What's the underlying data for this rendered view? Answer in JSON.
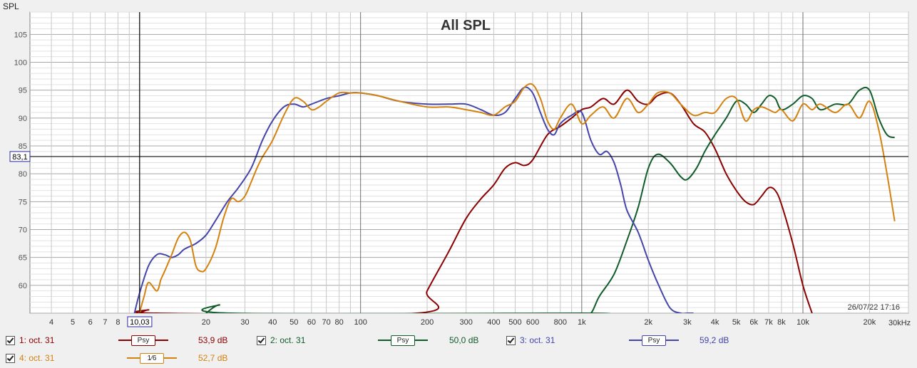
{
  "chart_data": {
    "type": "line",
    "title": "All SPL",
    "ylabel": "SPL",
    "xunit": "30kHz",
    "xscale": "log",
    "xlim": [
      3.2,
      30000
    ],
    "ylim": [
      55,
      109
    ],
    "yticks": [
      60,
      65,
      70,
      75,
      80,
      85,
      90,
      95,
      100,
      105
    ],
    "xtick_labels": [
      {
        "v": 4,
        "t": "4"
      },
      {
        "v": 5,
        "t": "5"
      },
      {
        "v": 6,
        "t": "6"
      },
      {
        "v": 7,
        "t": "7"
      },
      {
        "v": 8,
        "t": "8"
      },
      {
        "v": 20,
        "t": "20"
      },
      {
        "v": 30,
        "t": "30"
      },
      {
        "v": 40,
        "t": "40"
      },
      {
        "v": 50,
        "t": "50"
      },
      {
        "v": 60,
        "t": "60"
      },
      {
        "v": 70,
        "t": "70"
      },
      {
        "v": 80,
        "t": "80"
      },
      {
        "v": 100,
        "t": "100"
      },
      {
        "v": 200,
        "t": "200"
      },
      {
        "v": 300,
        "t": "300"
      },
      {
        "v": 400,
        "t": "400"
      },
      {
        "v": 500,
        "t": "500"
      },
      {
        "v": 600,
        "t": "600"
      },
      {
        "v": 800,
        "t": "800"
      },
      {
        "v": 1000,
        "t": "1k"
      },
      {
        "v": 2000,
        "t": "2k"
      },
      {
        "v": 3000,
        "t": "3k"
      },
      {
        "v": 4000,
        "t": "4k"
      },
      {
        "v": 5000,
        "t": "5k"
      },
      {
        "v": 6000,
        "t": "6k"
      },
      {
        "v": 7000,
        "t": "7k"
      },
      {
        "v": 8000,
        "t": "8k"
      },
      {
        "v": 10000,
        "t": "10k"
      },
      {
        "v": 20000,
        "t": "20k"
      }
    ],
    "cursor": {
      "x": 10.03,
      "x_label": "10,03",
      "y": 83.1,
      "y_label": "83,1"
    },
    "timestamp": "26/07/22 17:16",
    "grid": true,
    "series": [
      {
        "name": "1: oct. 31",
        "color": "#8b0000",
        "x": [
          10,
          11,
          12,
          180,
          200,
          250,
          300,
          350,
          400,
          450,
          500,
          550,
          600,
          700,
          800,
          900,
          1000,
          1100,
          1250,
          1400,
          1600,
          1800,
          2000,
          2200,
          2500,
          2800,
          3200,
          3600,
          4000,
          4500,
          5000,
          5500,
          6000,
          6500,
          7000,
          7500,
          8000,
          9000,
          10000,
          11000
        ],
        "y": [
          55,
          55.6,
          55,
          55,
          59,
          66,
          72,
          75.5,
          78,
          81,
          82,
          81.5,
          82.5,
          87,
          88.5,
          90,
          91.5,
          92,
          93.5,
          92.5,
          95,
          93,
          92.5,
          94,
          94.5,
          92.5,
          89,
          87.5,
          84.5,
          80,
          77,
          75,
          74.5,
          76,
          77.5,
          77,
          74.5,
          67.5,
          60,
          55
        ]
      },
      {
        "name": "2: oct. 31",
        "color": "#0f5c2a",
        "x": [
          20,
          23,
          26,
          1000,
          1100,
          1200,
          1400,
          1600,
          1800,
          2000,
          2200,
          2500,
          2800,
          3000,
          3300,
          3600,
          4000,
          4500,
          5000,
          5500,
          6000,
          6500,
          7000,
          7500,
          8000,
          9000,
          10000,
          11000,
          12000,
          14000,
          16000,
          18000,
          20000,
          22000,
          24000,
          26000
        ],
        "y": [
          55,
          56.5,
          55,
          55,
          55,
          58,
          62,
          68,
          74,
          81,
          83.5,
          82,
          79.5,
          79,
          81,
          84,
          87,
          90,
          93,
          92.5,
          91,
          92.5,
          94,
          93.5,
          91.5,
          92.5,
          94,
          93.5,
          91.5,
          92.5,
          92.5,
          95,
          95,
          90,
          87,
          86.5
        ]
      },
      {
        "name": "3: oct. 31",
        "color": "#4444aa",
        "x": [
          9.5,
          10,
          11,
          12,
          13,
          14,
          15,
          16,
          18,
          20,
          22,
          25,
          28,
          32,
          36,
          40,
          45,
          50,
          55,
          60,
          70,
          80,
          90,
          100,
          120,
          150,
          200,
          250,
          300,
          350,
          400,
          450,
          500,
          550,
          600,
          650,
          700,
          750,
          800,
          900,
          1000,
          1100,
          1200,
          1300,
          1400,
          1500,
          1600,
          1800,
          2000,
          2200,
          2500,
          2800,
          3000,
          3200
        ],
        "y": [
          55,
          58.5,
          63.5,
          65.5,
          65.5,
          65,
          65.5,
          66.5,
          67.5,
          69,
          71.5,
          75,
          77.5,
          81,
          86,
          89.5,
          92,
          92.5,
          92,
          92.5,
          93.5,
          94,
          94.5,
          94.5,
          94,
          93,
          92.5,
          92.5,
          92.5,
          91.5,
          90.5,
          91,
          93.5,
          95.5,
          94.5,
          91,
          88,
          87,
          89,
          90.5,
          91,
          86,
          83.5,
          84,
          82,
          78,
          73.5,
          69.5,
          64.5,
          60.5,
          56,
          55,
          55,
          55
        ]
      },
      {
        "name": "4: oct. 31",
        "color": "#d4820f",
        "x": [
          10,
          10.5,
          11,
          12,
          12.5,
          13,
          14,
          15,
          16,
          17,
          18,
          19,
          20,
          22,
          24,
          26,
          28,
          30,
          32,
          34,
          36,
          40,
          45,
          50,
          55,
          60,
          65,
          70,
          80,
          90,
          100,
          120,
          150,
          200,
          250,
          300,
          350,
          400,
          450,
          500,
          550,
          600,
          650,
          700,
          750,
          800,
          900,
          1000,
          1100,
          1250,
          1400,
          1600,
          1800,
          2000,
          2200,
          2500,
          2800,
          3200,
          3600,
          4000,
          4500,
          5000,
          5500,
          6000,
          6500,
          7000,
          7500,
          8000,
          9000,
          10000,
          11000,
          12000,
          14000,
          16000,
          18000,
          20000,
          22000,
          24000,
          26000
        ],
        "y": [
          55,
          58,
          60.5,
          59,
          61,
          62.5,
          65.5,
          68.5,
          69.5,
          68,
          63.5,
          62.5,
          63,
          66.5,
          72,
          75.5,
          75,
          76,
          78.5,
          81,
          83,
          86,
          90.5,
          93.5,
          93,
          91.5,
          92,
          93,
          94.5,
          94.5,
          94.5,
          94,
          93,
          92,
          92,
          91.5,
          91,
          90.5,
          92,
          93,
          95.5,
          96,
          93.5,
          89.5,
          88,
          90,
          92.5,
          89,
          90.5,
          92,
          90,
          93.5,
          91,
          92.5,
          94.5,
          94.5,
          92.5,
          90.5,
          91,
          91,
          93.5,
          93.5,
          89.5,
          91.5,
          92,
          91.5,
          91,
          91.5,
          89.5,
          92.5,
          91.5,
          92.5,
          91,
          92.5,
          90,
          93,
          88,
          80,
          71.5
        ]
      }
    ]
  },
  "legend": [
    {
      "label": "1: oct. 31",
      "smoothing": "Psy",
      "value": "53,9 dB",
      "color": "#8b0000"
    },
    {
      "label": "2: oct. 31",
      "smoothing": "Psy",
      "value": "50,0 dB",
      "color": "#0f5c2a"
    },
    {
      "label": "3: oct. 31",
      "smoothing": "Psy",
      "value": "59,2 dB",
      "color": "#4444aa"
    },
    {
      "label": "4: oct. 31",
      "smoothing": "1⁄6",
      "value": "52,7 dB",
      "color": "#d4820f"
    }
  ]
}
